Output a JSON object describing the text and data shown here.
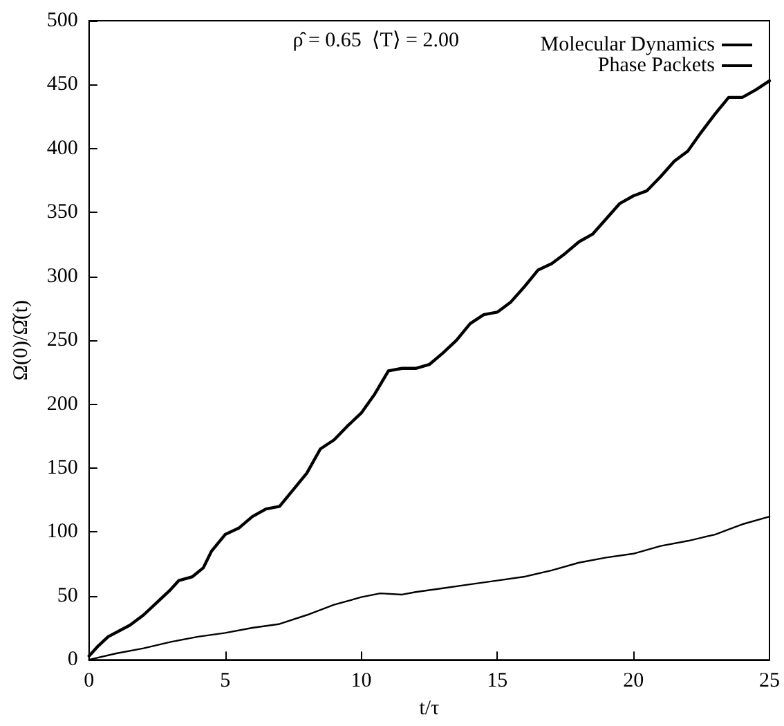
{
  "chart_data": {
    "type": "line",
    "xlabel": "t/τ",
    "ylabel": "Ω(0)/Ω̂(t)",
    "annotations": [
      "ρ̂ = 0.65  ⟨T⟩ = 2.00"
    ],
    "xlim": [
      0,
      25
    ],
    "xticks": [
      0,
      5,
      10,
      15,
      20,
      25
    ],
    "ylim": [
      0,
      500
    ],
    "yticks": [
      0,
      50,
      100,
      150,
      200,
      250,
      300,
      350,
      400,
      450,
      500
    ],
    "grid": false,
    "legend": "top right",
    "marker": "none",
    "line_style": "solid",
    "series": [
      {
        "name": "Molecular Dynamics",
        "color": "#000000",
        "x": [
          0,
          0.3,
          0.7,
          1.5,
          2,
          2.5,
          3,
          3.3,
          3.8,
          4.2,
          4.5,
          5,
          5.5,
          6,
          6.5,
          7,
          7.5,
          8,
          8.5,
          9,
          9.5,
          10,
          10.5,
          11,
          11.5,
          12,
          12.5,
          13,
          13.5,
          14,
          14.5,
          15,
          15.5,
          16,
          16.5,
          17,
          17.5,
          18,
          18.5,
          19,
          19.5,
          20,
          20.5,
          21,
          21.5,
          22,
          22.5,
          23,
          23.5,
          24,
          24.5,
          25
        ],
        "values": [
          3,
          10,
          18,
          27,
          35,
          45,
          55,
          62,
          65,
          72,
          85,
          98,
          103,
          112,
          118,
          120,
          133,
          146,
          165,
          172,
          183,
          193,
          208,
          226,
          228,
          228,
          231,
          240,
          250,
          263,
          270,
          272,
          280,
          292,
          305,
          310,
          318,
          327,
          333,
          345,
          357,
          363,
          367,
          378,
          390,
          398,
          413,
          427,
          440,
          440,
          446,
          453
        ]
      },
      {
        "name": "Phase Packets",
        "color": "#000000",
        "x": [
          0,
          1,
          2,
          3,
          4,
          5,
          6,
          7,
          8,
          9,
          10,
          10.7,
          11.5,
          12,
          13,
          14,
          15,
          16,
          17,
          18,
          19,
          20,
          21,
          22,
          23,
          24,
          25
        ],
        "values": [
          0,
          5,
          9,
          14,
          18,
          21,
          25,
          28,
          35,
          43,
          49,
          52,
          51,
          53,
          56,
          59,
          62,
          65,
          70,
          76,
          80,
          83,
          89,
          93,
          98,
          106,
          112
        ]
      }
    ]
  }
}
